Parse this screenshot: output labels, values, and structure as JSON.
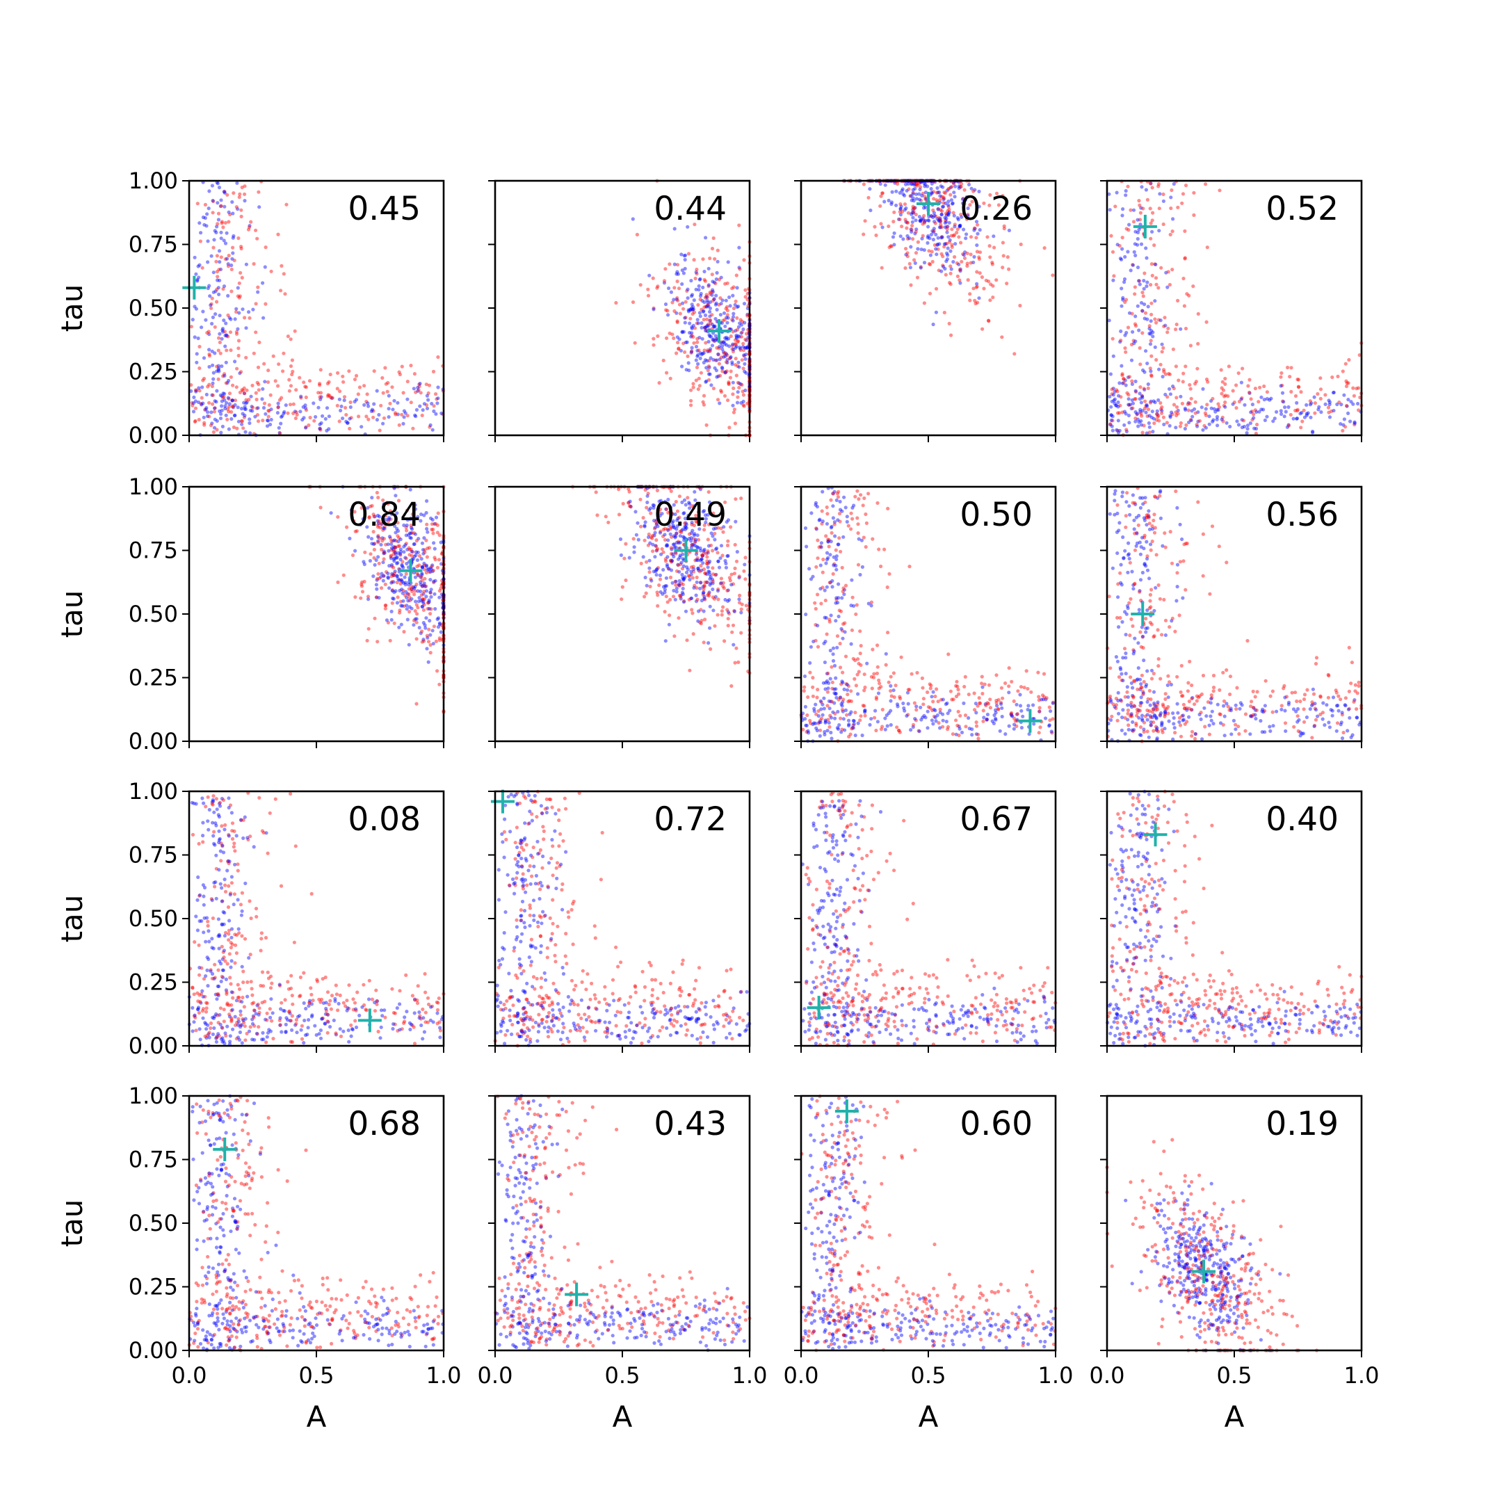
{
  "chart_data": {
    "type": "scatter",
    "layout": {
      "rows": 4,
      "cols": 4,
      "sharex": true,
      "sharey": true
    },
    "xlabel": "A",
    "ylabel": "tau",
    "xlim": [
      0.0,
      1.0
    ],
    "ylim": [
      0.0,
      1.0
    ],
    "xticks": [
      "0.0",
      "0.5",
      "1.0"
    ],
    "yticks": [
      "0.00",
      "0.25",
      "0.50",
      "0.75",
      "1.00"
    ],
    "grid": false,
    "colors": {
      "series_a": "#ff0000",
      "series_b": "#0000ff",
      "marker": "#20b2aa"
    },
    "panels": [
      {
        "value_label": "0.45",
        "marker": {
          "A": 0.02,
          "tau": 0.58
        }
      },
      {
        "value_label": "0.44",
        "marker": {
          "A": 0.88,
          "tau": 0.41
        }
      },
      {
        "value_label": "0.26",
        "marker": {
          "A": 0.5,
          "tau": 0.91
        }
      },
      {
        "value_label": "0.52",
        "marker": {
          "A": 0.15,
          "tau": 0.82
        }
      },
      {
        "value_label": "0.84",
        "marker": {
          "A": 0.87,
          "tau": 0.67
        }
      },
      {
        "value_label": "0.49",
        "marker": {
          "A": 0.75,
          "tau": 0.75
        }
      },
      {
        "value_label": "0.50",
        "marker": {
          "A": 0.9,
          "tau": 0.08
        }
      },
      {
        "value_label": "0.56",
        "marker": {
          "A": 0.14,
          "tau": 0.5
        }
      },
      {
        "value_label": "0.08",
        "marker": {
          "A": 0.71,
          "tau": 0.1
        }
      },
      {
        "value_label": "0.72",
        "marker": {
          "A": 0.03,
          "tau": 0.96
        }
      },
      {
        "value_label": "0.67",
        "marker": {
          "A": 0.07,
          "tau": 0.15
        }
      },
      {
        "value_label": "0.40",
        "marker": {
          "A": 0.19,
          "tau": 0.83
        }
      },
      {
        "value_label": "0.68",
        "marker": {
          "A": 0.14,
          "tau": 0.79
        }
      },
      {
        "value_label": "0.43",
        "marker": {
          "A": 0.32,
          "tau": 0.22
        }
      },
      {
        "value_label": "0.60",
        "marker": {
          "A": 0.18,
          "tau": 0.94
        }
      },
      {
        "value_label": "0.19",
        "marker": {
          "A": 0.38,
          "tau": 0.31
        }
      }
    ]
  }
}
